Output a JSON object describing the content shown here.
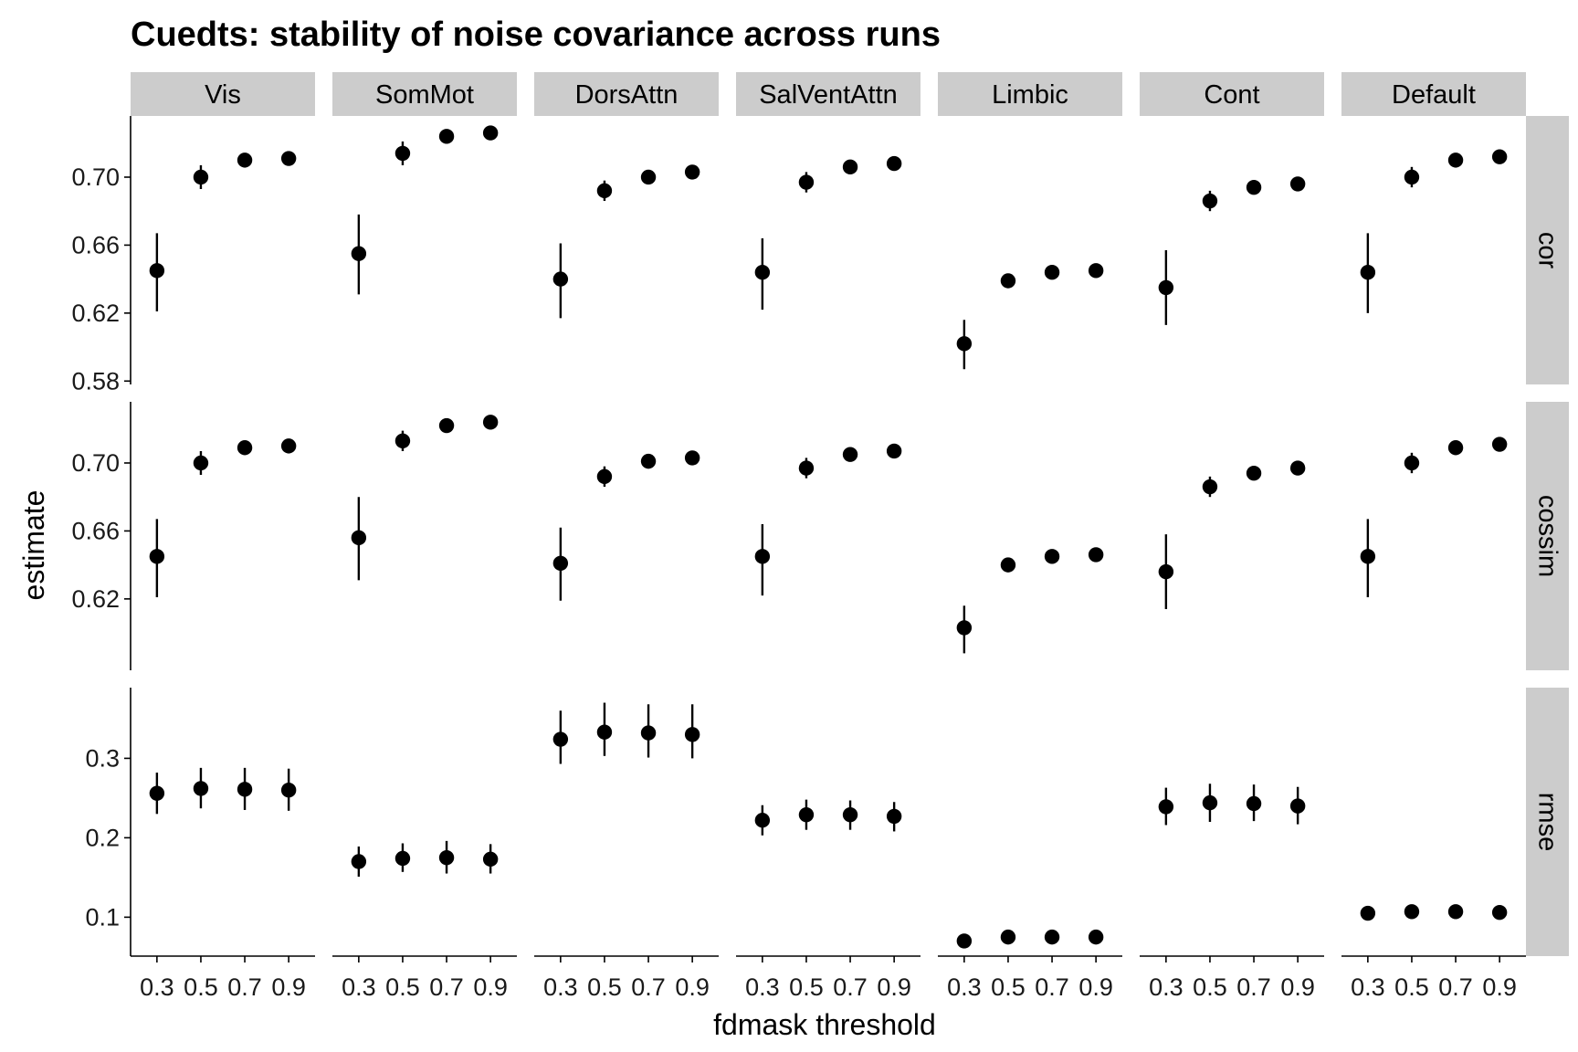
{
  "chart_data": {
    "type": "scatter",
    "title": "Cuedts: stability of noise covariance across runs",
    "xlabel": "fdmask threshold",
    "ylabel": "estimate",
    "x_ticks": [
      "0.3",
      "0.5",
      "0.7",
      "0.9"
    ],
    "x_values": [
      0.3,
      0.5,
      0.7,
      0.9
    ],
    "xlim": [
      0.18,
      1.02
    ],
    "columns": [
      "Vis",
      "SomMot",
      "DorsAttn",
      "SalVentAttn",
      "Limbic",
      "Cont",
      "Default"
    ],
    "rows": [
      {
        "name": "cor",
        "ylim": [
          0.578,
          0.736
        ],
        "y_ticks": [
          "0.58",
          "0.62",
          "0.66",
          "0.70"
        ],
        "y_tick_values": [
          0.58,
          0.62,
          0.66,
          0.7
        ],
        "data": {
          "Vis": {
            "est": [
              0.645,
              0.7,
              0.71,
              0.711
            ],
            "lo": [
              0.621,
              0.693,
              0.706,
              0.708
            ],
            "hi": [
              0.667,
              0.707,
              0.714,
              0.714
            ]
          },
          "SomMot": {
            "est": [
              0.655,
              0.714,
              0.724,
              0.726
            ],
            "lo": [
              0.631,
              0.707,
              0.721,
              0.723
            ],
            "hi": [
              0.678,
              0.721,
              0.727,
              0.729
            ]
          },
          "DorsAttn": {
            "est": [
              0.64,
              0.692,
              0.7,
              0.703
            ],
            "lo": [
              0.617,
              0.686,
              0.696,
              0.699
            ],
            "hi": [
              0.661,
              0.698,
              0.704,
              0.707
            ]
          },
          "SalVentAttn": {
            "est": [
              0.644,
              0.697,
              0.706,
              0.708
            ],
            "lo": [
              0.622,
              0.691,
              0.702,
              0.705
            ],
            "hi": [
              0.664,
              0.703,
              0.71,
              0.711
            ]
          },
          "Limbic": {
            "est": [
              0.602,
              0.639,
              0.644,
              0.645
            ],
            "lo": [
              0.587,
              0.636,
              0.642,
              0.643
            ],
            "hi": [
              0.616,
              0.642,
              0.647,
              0.648
            ]
          },
          "Cont": {
            "est": [
              0.635,
              0.686,
              0.694,
              0.696
            ],
            "lo": [
              0.613,
              0.68,
              0.69,
              0.693
            ],
            "hi": [
              0.657,
              0.692,
              0.698,
              0.699
            ]
          },
          "Default": {
            "est": [
              0.644,
              0.7,
              0.71,
              0.712
            ],
            "lo": [
              0.62,
              0.694,
              0.706,
              0.709
            ],
            "hi": [
              0.667,
              0.706,
              0.714,
              0.715
            ]
          }
        }
      },
      {
        "name": "cossim",
        "ylim": [
          0.578,
          0.736
        ],
        "y_ticks": [
          "0.62",
          "0.66",
          "0.70"
        ],
        "y_tick_values": [
          0.62,
          0.66,
          0.7
        ],
        "data": {
          "Vis": {
            "est": [
              0.645,
              0.7,
              0.709,
              0.71
            ],
            "lo": [
              0.621,
              0.693,
              0.705,
              0.707
            ],
            "hi": [
              0.667,
              0.707,
              0.713,
              0.713
            ]
          },
          "SomMot": {
            "est": [
              0.656,
              0.713,
              0.722,
              0.724
            ],
            "lo": [
              0.631,
              0.707,
              0.719,
              0.721
            ],
            "hi": [
              0.68,
              0.719,
              0.725,
              0.727
            ]
          },
          "DorsAttn": {
            "est": [
              0.641,
              0.692,
              0.701,
              0.703
            ],
            "lo": [
              0.619,
              0.686,
              0.697,
              0.699
            ],
            "hi": [
              0.662,
              0.698,
              0.705,
              0.707
            ]
          },
          "SalVentAttn": {
            "est": [
              0.645,
              0.697,
              0.705,
              0.707
            ],
            "lo": [
              0.622,
              0.691,
              0.701,
              0.704
            ],
            "hi": [
              0.664,
              0.703,
              0.709,
              0.71
            ]
          },
          "Limbic": {
            "est": [
              0.603,
              0.64,
              0.645,
              0.646
            ],
            "lo": [
              0.588,
              0.637,
              0.643,
              0.644
            ],
            "hi": [
              0.616,
              0.643,
              0.648,
              0.649
            ]
          },
          "Cont": {
            "est": [
              0.636,
              0.686,
              0.694,
              0.697
            ],
            "lo": [
              0.614,
              0.68,
              0.69,
              0.694
            ],
            "hi": [
              0.658,
              0.692,
              0.698,
              0.7
            ]
          },
          "Default": {
            "est": [
              0.645,
              0.7,
              0.709,
              0.711
            ],
            "lo": [
              0.621,
              0.694,
              0.705,
              0.708
            ],
            "hi": [
              0.667,
              0.706,
              0.713,
              0.714
            ]
          }
        }
      },
      {
        "name": "rmse",
        "ylim": [
          0.051,
          0.389
        ],
        "y_ticks": [
          "0.1",
          "0.2",
          "0.3"
        ],
        "y_tick_values": [
          0.1,
          0.2,
          0.3
        ],
        "data": {
          "Vis": {
            "est": [
              0.256,
              0.262,
              0.261,
              0.26
            ],
            "lo": [
              0.23,
              0.237,
              0.235,
              0.234
            ],
            "hi": [
              0.282,
              0.288,
              0.288,
              0.287
            ]
          },
          "SomMot": {
            "est": [
              0.17,
              0.174,
              0.175,
              0.173
            ],
            "lo": [
              0.151,
              0.157,
              0.155,
              0.155
            ],
            "hi": [
              0.189,
              0.193,
              0.196,
              0.192
            ]
          },
          "DorsAttn": {
            "est": [
              0.324,
              0.333,
              0.332,
              0.33
            ],
            "lo": [
              0.293,
              0.303,
              0.301,
              0.3
            ],
            "hi": [
              0.36,
              0.37,
              0.368,
              0.368
            ]
          },
          "SalVentAttn": {
            "est": [
              0.222,
              0.229,
              0.229,
              0.227
            ],
            "lo": [
              0.203,
              0.21,
              0.21,
              0.208
            ],
            "hi": [
              0.241,
              0.248,
              0.247,
              0.245
            ]
          },
          "Limbic": {
            "est": [
              0.07,
              0.075,
              0.075,
              0.075
            ],
            "lo": [
              0.066,
              0.071,
              0.071,
              0.071
            ],
            "hi": [
              0.074,
              0.079,
              0.079,
              0.079
            ]
          },
          "Cont": {
            "est": [
              0.239,
              0.244,
              0.243,
              0.24
            ],
            "lo": [
              0.216,
              0.22,
              0.221,
              0.217
            ],
            "hi": [
              0.263,
              0.268,
              0.267,
              0.264
            ]
          },
          "Default": {
            "est": [
              0.105,
              0.107,
              0.107,
              0.106
            ],
            "lo": [
              0.1,
              0.102,
              0.102,
              0.101
            ],
            "hi": [
              0.11,
              0.112,
              0.112,
              0.111
            ]
          }
        }
      }
    ]
  }
}
